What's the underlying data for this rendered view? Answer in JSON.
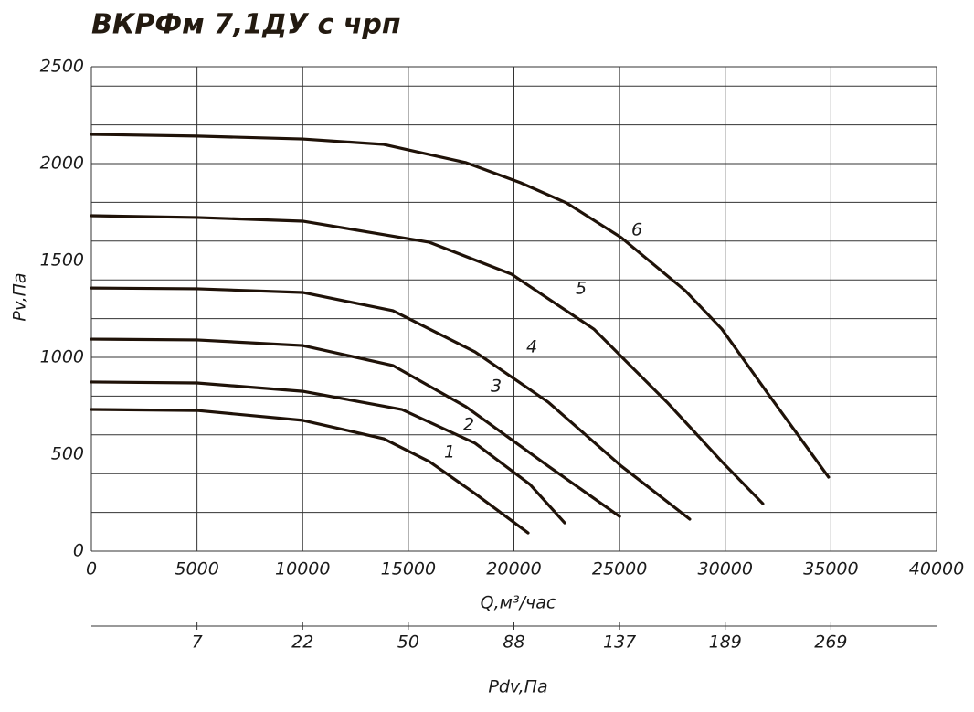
{
  "chart_data": {
    "type": "line",
    "title": "ВКРФм 7,1ДУ с чрп",
    "xlabel": "Q,м³/час",
    "ylabel": "Pv,Па",
    "x2label": "Pdv,Па",
    "xlim": [
      0,
      40000
    ],
    "ylim": [
      0,
      2500
    ],
    "xticks": [
      0,
      5000,
      10000,
      15000,
      20000,
      25000,
      30000,
      35000,
      40000
    ],
    "yticks": [
      0,
      500,
      1000,
      1500,
      2000,
      2500
    ],
    "ygrid": [
      0,
      200,
      400,
      600,
      800,
      1000,
      1200,
      1400,
      1600,
      1800,
      2000,
      2200,
      2400,
      2500
    ],
    "x2ticks": [
      {
        "value": 5000,
        "label": "7"
      },
      {
        "value": 10000,
        "label": "22"
      },
      {
        "value": 15000,
        "label": "50"
      },
      {
        "value": 20000,
        "label": "88"
      },
      {
        "value": 25000,
        "label": "137"
      },
      {
        "value": 30000,
        "label": "189"
      },
      {
        "value": 35000,
        "label": "269"
      }
    ],
    "grid": true,
    "color": "#1f1208",
    "series": [
      {
        "name": "1",
        "x": [
          0,
          5000,
          10000,
          13840,
          16000,
          18160,
          20670
        ],
        "values": [
          731,
          726,
          675,
          580,
          462,
          297,
          94
        ]
      },
      {
        "name": "2",
        "x": [
          0,
          5000,
          10000,
          14700,
          18160,
          20760,
          22400
        ],
        "values": [
          873,
          868,
          825,
          731,
          557,
          344,
          146
        ]
      },
      {
        "name": "3",
        "x": [
          0,
          5000,
          10000,
          14270,
          17730,
          21620,
          25000
        ],
        "values": [
          1094,
          1090,
          1061,
          958,
          745,
          439,
          179
        ]
      },
      {
        "name": "4",
        "x": [
          0,
          5000,
          10000,
          14270,
          18160,
          21620,
          25080,
          28320
        ],
        "values": [
          1358,
          1354,
          1335,
          1241,
          1028,
          769,
          439,
          165
        ]
      },
      {
        "name": "5",
        "x": [
          0,
          5000,
          10000,
          16000,
          19890,
          23780,
          27240,
          29840,
          31780
        ],
        "values": [
          1731,
          1722,
          1703,
          1594,
          1429,
          1146,
          769,
          462,
          245
        ]
      },
      {
        "name": "6",
        "x": [
          0,
          5000,
          10000,
          13840,
          17730,
          20320,
          22490,
          25080,
          28110,
          29840,
          32000,
          34890
        ],
        "values": [
          2151,
          2142,
          2127,
          2099,
          2005,
          1901,
          1797,
          1618,
          1344,
          1146,
          816,
          382
        ]
      }
    ]
  }
}
